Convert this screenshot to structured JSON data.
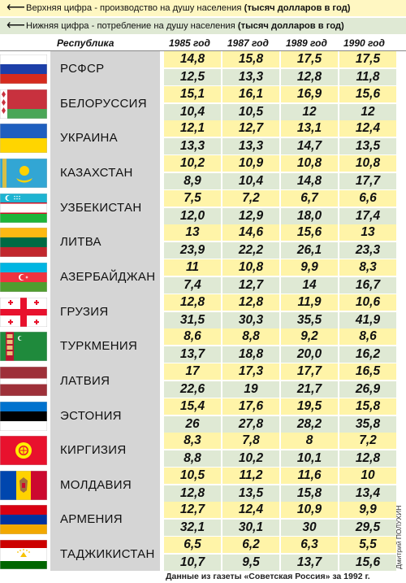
{
  "legend": {
    "top_text": "Верхняя цифра - производство на душу населения ",
    "top_bold": "(тысяч долларов в год)",
    "bottom_text": "Нижняя цифра - потребление на душу населения ",
    "bottom_bold": "(тысяч долларов в год)",
    "arrow_glyph": "⟵"
  },
  "header": {
    "republic": "Республика",
    "years": [
      "1985 год",
      "1987 год",
      "1989 год",
      "1990 год"
    ]
  },
  "rows": [
    {
      "name": "РСФСР",
      "flag": "russia",
      "top": [
        "14,8",
        "15,8",
        "17,5",
        "17,5"
      ],
      "bottom": [
        "12,5",
        "13,3",
        "12,8",
        "11,8"
      ]
    },
    {
      "name": "БЕЛОРУССИЯ",
      "flag": "belarus",
      "top": [
        "15,1",
        "16,1",
        "16,9",
        "15,6"
      ],
      "bottom": [
        "10,4",
        "10,5",
        "12",
        "12"
      ]
    },
    {
      "name": "УКРАИНА",
      "flag": "ukraine",
      "top": [
        "12,1",
        "12,7",
        "13,1",
        "12,4"
      ],
      "bottom": [
        "13,3",
        "13,3",
        "14,7",
        "13,5"
      ]
    },
    {
      "name": "КАЗАХСТАН",
      "flag": "kazakhstan",
      "top": [
        "10,2",
        "10,9",
        "10,8",
        "10,8"
      ],
      "bottom": [
        "8,9",
        "10,4",
        "14,8",
        "17,7"
      ]
    },
    {
      "name": "УЗБЕКИСТАН",
      "flag": "uzbekistan",
      "top": [
        "7,5",
        "7,2",
        "6,7",
        "6,6"
      ],
      "bottom": [
        "12,0",
        "12,9",
        "18,0",
        "17,4"
      ]
    },
    {
      "name": "ЛИТВА",
      "flag": "lithuania",
      "top": [
        "13",
        "14,6",
        "15,6",
        "13"
      ],
      "bottom": [
        "23,9",
        "22,2",
        "26,1",
        "23,3"
      ]
    },
    {
      "name": "АЗЕРБАЙДЖАН",
      "flag": "azerbaijan",
      "top": [
        "11",
        "10,8",
        "9,9",
        "8,3"
      ],
      "bottom": [
        "7,4",
        "12,7",
        "14",
        "16,7"
      ]
    },
    {
      "name": "ГРУЗИЯ",
      "flag": "georgia",
      "top": [
        "12,8",
        "12,8",
        "11,9",
        "10,6"
      ],
      "bottom": [
        "31,5",
        "30,3",
        "35,5",
        "41,9"
      ]
    },
    {
      "name": "ТУРКМЕНИЯ",
      "flag": "turkmenistan",
      "top": [
        "8,6",
        "8,8",
        "9,2",
        "8,6"
      ],
      "bottom": [
        "13,7",
        "18,8",
        "20,0",
        "16,2"
      ]
    },
    {
      "name": "ЛАТВИЯ",
      "flag": "latvia",
      "top": [
        "17",
        "17,3",
        "17,7",
        "16,5"
      ],
      "bottom": [
        "22,6",
        "19",
        "21,7",
        "26,9"
      ]
    },
    {
      "name": "ЭСТОНИЯ",
      "flag": "estonia",
      "top": [
        "15,4",
        "17,6",
        "19,5",
        "15,8"
      ],
      "bottom": [
        "26",
        "27,8",
        "28,2",
        "35,8"
      ]
    },
    {
      "name": "КИРГИЗИЯ",
      "flag": "kyrgyzstan",
      "top": [
        "8,3",
        "7,8",
        "8",
        "7,2"
      ],
      "bottom": [
        "8,8",
        "10,2",
        "10,1",
        "12,8"
      ]
    },
    {
      "name": "МОЛДАВИЯ",
      "flag": "moldova",
      "top": [
        "10,5",
        "11,2",
        "11,6",
        "10"
      ],
      "bottom": [
        "12,8",
        "13,5",
        "15,8",
        "13,4"
      ]
    },
    {
      "name": "АРМЕНИЯ",
      "flag": "armenia",
      "top": [
        "12,7",
        "12,4",
        "10,9",
        "9,9"
      ],
      "bottom": [
        "32,1",
        "30,1",
        "30",
        "29,5"
      ]
    },
    {
      "name": "ТАДЖИКИСТАН",
      "flag": "tajikistan",
      "top": [
        "6,5",
        "6,2",
        "6,3",
        "5,5"
      ],
      "bottom": [
        "10,7",
        "9,5",
        "13,7",
        "15,6"
      ]
    }
  ],
  "footer": "Данные из газеты «Советская Россия» за 1992 г.",
  "credit": "Дмитрий ПОЛУХИН"
}
